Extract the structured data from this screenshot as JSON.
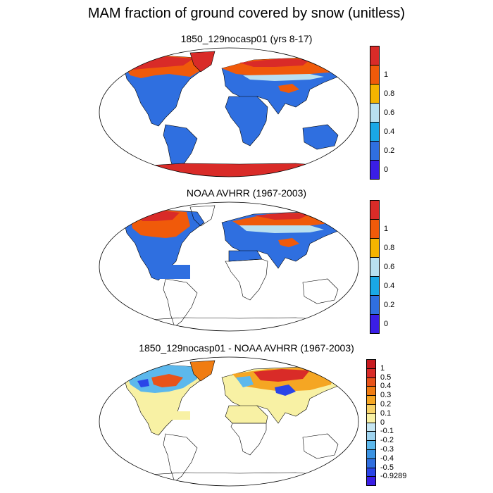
{
  "title": "MAM fraction of ground covered by snow (unitless)",
  "panels": [
    {
      "title": "1850_129nocasp01 (yrs 8-17)",
      "colorbar": {
        "colors": [
          "#3a1ee6",
          "#2f6fe0",
          "#1aa8e6",
          "#b9e0f0",
          "#f5b400",
          "#f05a0a",
          "#d92b28"
        ],
        "labels": [
          "0",
          "0.2",
          "0.4",
          "0.6",
          "0.8",
          "1"
        ]
      }
    },
    {
      "title": "NOAA AVHRR (1967-2003)",
      "colorbar": {
        "colors": [
          "#3a1ee6",
          "#2f6fe0",
          "#1aa8e6",
          "#b9e0f0",
          "#f5b400",
          "#f05a0a",
          "#d92b28"
        ],
        "labels": [
          "0",
          "0.2",
          "0.4",
          "0.6",
          "0.8",
          "1"
        ]
      }
    },
    {
      "title": "1850_129nocasp01 - NOAA AVHRR (1967-2003)",
      "colorbar": {
        "colors": [
          "#3a1ee6",
          "#2a45e8",
          "#2f6fe0",
          "#3a93e3",
          "#5cb8ec",
          "#9fd4f0",
          "#c6e6f2",
          "#f8f1a4",
          "#f7d36a",
          "#f5a623",
          "#f07c12",
          "#e8531a",
          "#d92b28",
          "#c81a20"
        ],
        "labels": [
          "-0.9289",
          "-0.5",
          "-0.4",
          "-0.3",
          "-0.2",
          "-0.1",
          "0",
          "0.1",
          "0.2",
          "0.3",
          "0.4",
          "0.5",
          "1"
        ]
      }
    }
  ],
  "colors": {
    "snow_free": "#2f6fe0",
    "high_snow": "#d92b28",
    "mid_snow": "#f05a0a",
    "diff_neutral": "#f8f1a4"
  }
}
